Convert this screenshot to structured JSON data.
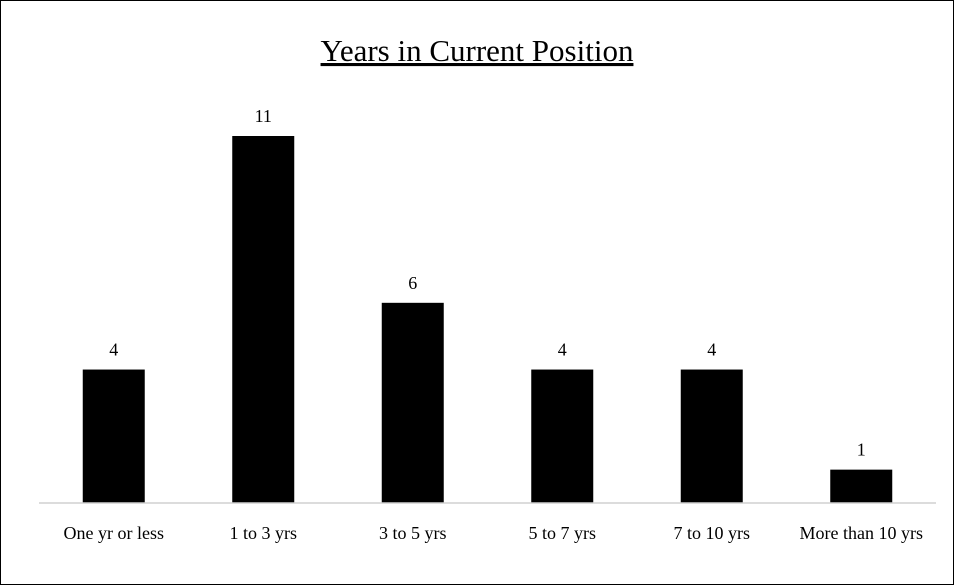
{
  "chart_data": {
    "type": "bar",
    "title": "Years in Current Position",
    "categories": [
      "One yr or less",
      "1 to 3 yrs",
      "3 to 5 yrs",
      "5 to 7 yrs",
      "7 to 10 yrs",
      "More than 10 yrs"
    ],
    "values": [
      4,
      11,
      6,
      4,
      4,
      1
    ],
    "color": "#000000"
  }
}
